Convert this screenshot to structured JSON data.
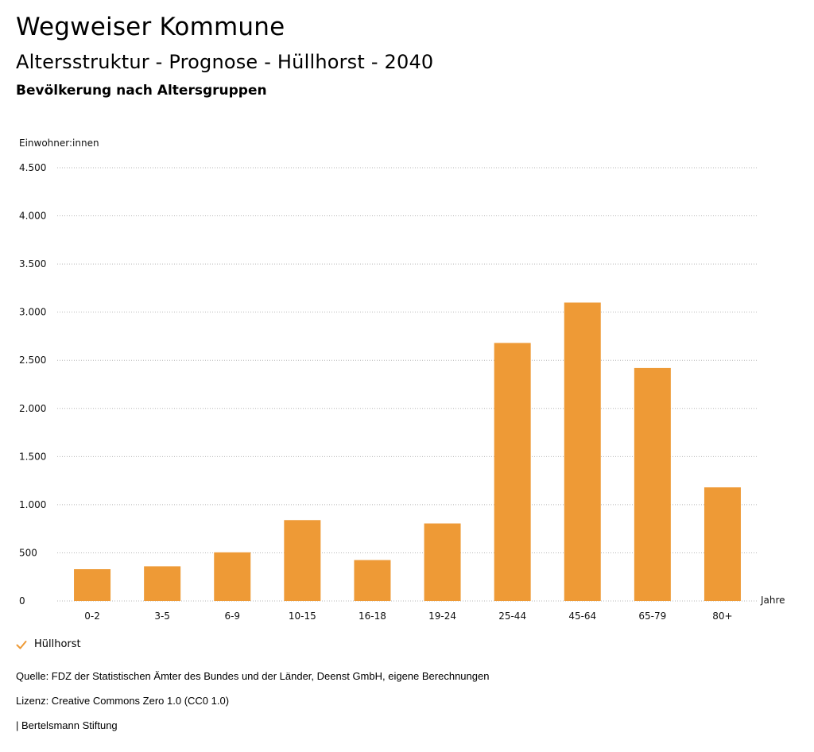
{
  "header": {
    "site_title": "Wegweiser Kommune",
    "chart_title": "Altersstruktur - Prognose - Hüllhorst - 2040",
    "chart_subtitle": "Bevölkerung nach Altersgruppen"
  },
  "colors": {
    "bar": "#EE9A36",
    "grid": "#b5b5b5",
    "legend_check": "#EE9A36"
  },
  "chart_data": {
    "type": "bar",
    "ylabel": "Einwohner:innen",
    "xlabel": "Jahre",
    "categories": [
      "0-2",
      "3-5",
      "6-9",
      "10-15",
      "16-18",
      "19-24",
      "25-44",
      "45-64",
      "65-79",
      "80+"
    ],
    "series": [
      {
        "name": "Hüllhorst",
        "values": [
          330,
          360,
          505,
          840,
          425,
          805,
          2680,
          3100,
          2420,
          1180
        ]
      }
    ],
    "ylim": [
      0,
      4500
    ],
    "yticks": [
      0,
      500,
      1000,
      1500,
      2000,
      2500,
      3000,
      3500,
      4000,
      4500
    ],
    "ytick_labels": [
      "0",
      "500",
      "1.000",
      "1.500",
      "2.000",
      "2.500",
      "3.000",
      "3.500",
      "4.000",
      "4.500"
    ],
    "grid": true,
    "legend_position": "bottom-left"
  },
  "legend": {
    "icon": "check-icon",
    "label": "Hüllhorst"
  },
  "footer": {
    "source": "Quelle: FDZ der Statistischen Ämter des Bundes und der Länder, Deenst GmbH, eigene Berechnungen",
    "license": "Lizenz: Creative Commons Zero 1.0 (CC0 1.0)",
    "publisher": "| Bertelsmann Stiftung"
  }
}
